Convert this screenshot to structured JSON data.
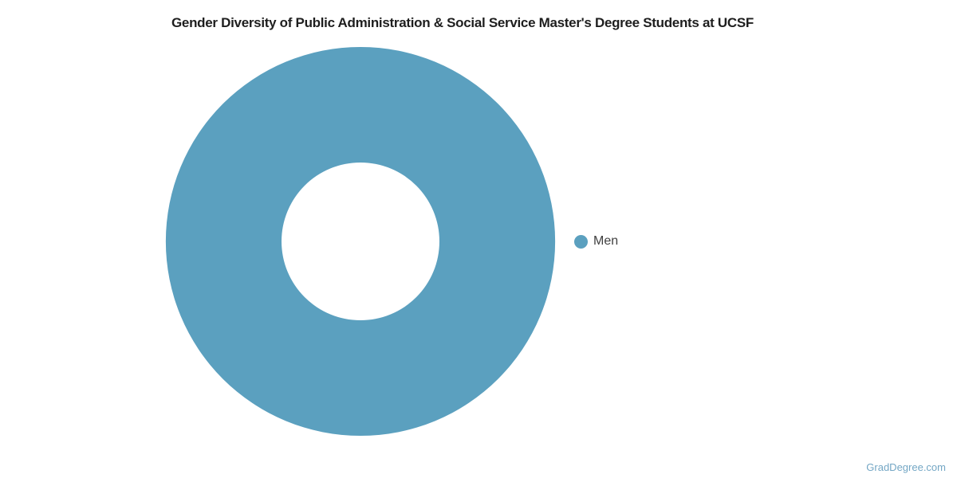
{
  "page": {
    "background": "#ffffff"
  },
  "chart_data": {
    "type": "pie",
    "variant": "donut",
    "title": "Gender Diversity of Public Administration & Social Service Master's Degree Students at UCSF",
    "categories": [
      "Men"
    ],
    "values": [
      100
    ],
    "colors": [
      "#5ba0bf"
    ],
    "unit": "percent",
    "legend_position": "right",
    "inner_radius_ratio": 0.405,
    "data_labels": "none",
    "grid": "off"
  },
  "legend": {
    "items": [
      {
        "label": "Men",
        "color": "#5ba0bf"
      }
    ]
  },
  "footer": {
    "watermark": "GradDegree.com",
    "watermark_color": "#74a7c5"
  }
}
